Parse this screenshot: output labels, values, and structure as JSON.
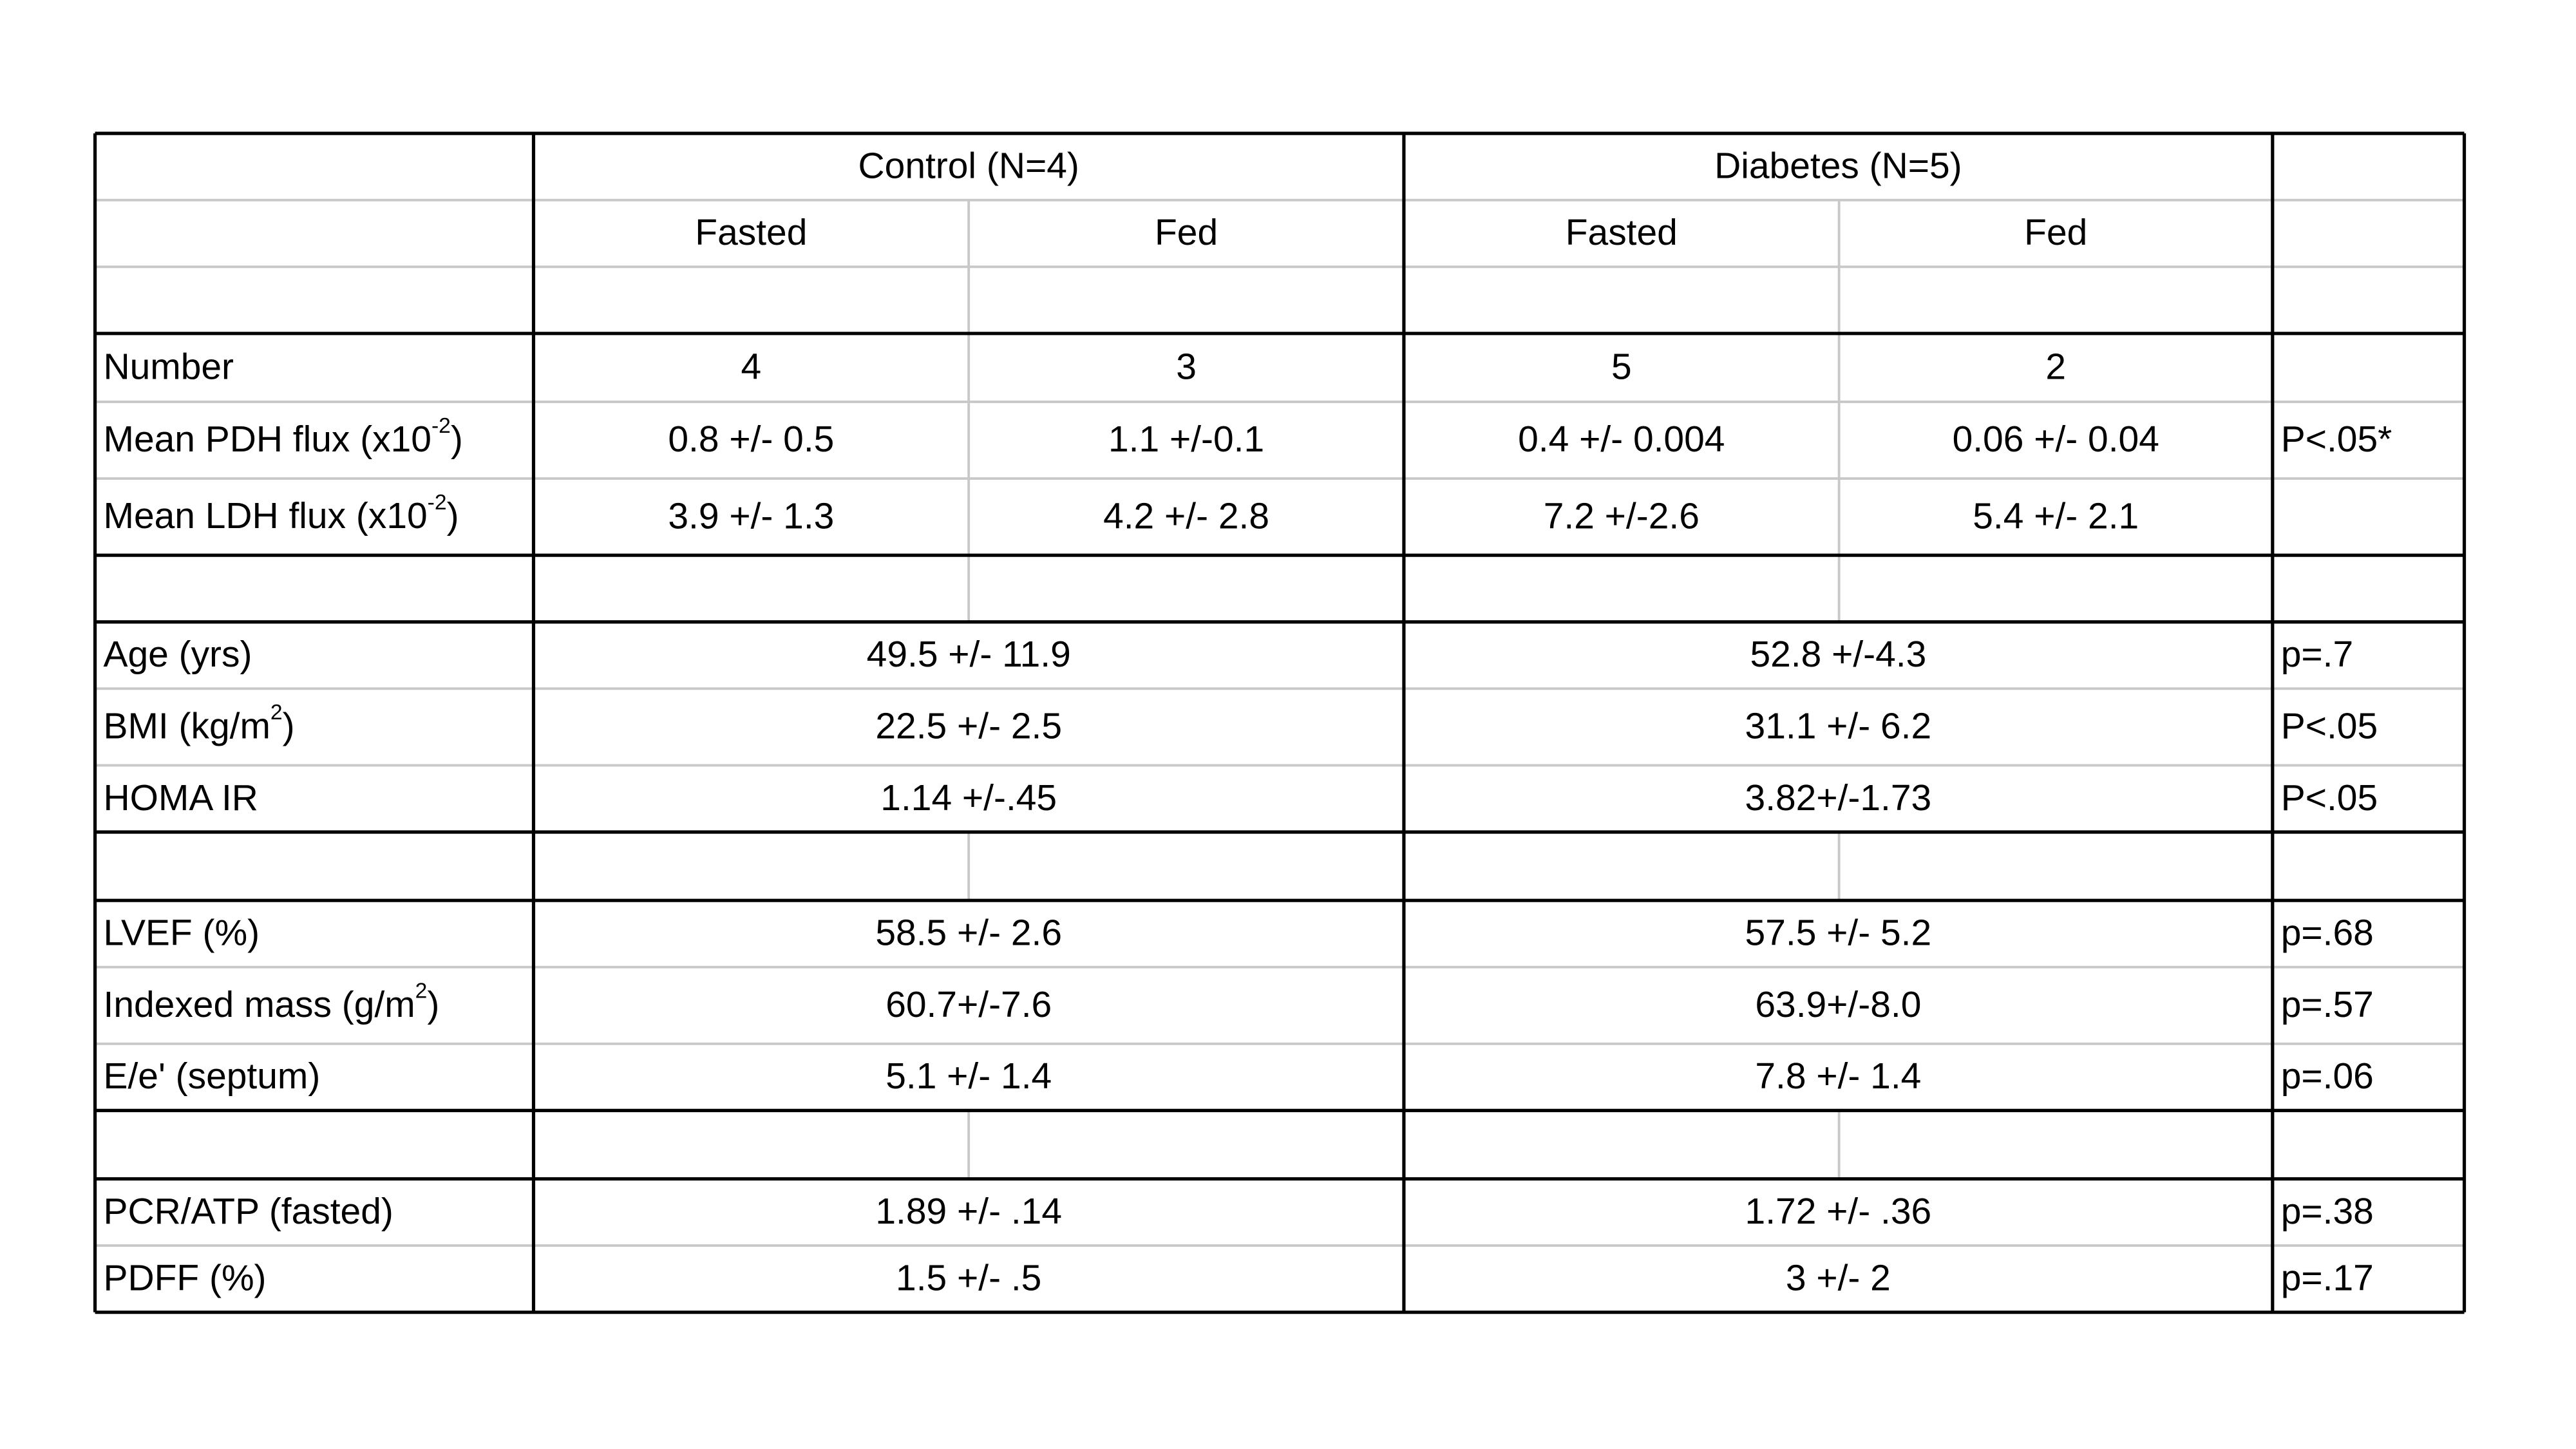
{
  "table": {
    "group_headers": [
      "Control (N=4)",
      "Diabetes (N=5)"
    ],
    "sub_headers": [
      "Fasted",
      "Fed",
      "Fasted",
      "Fed"
    ],
    "sections": [
      {
        "rows": [
          {
            "label": "Number",
            "cells": [
              "4",
              "3",
              "5",
              "2"
            ]
          },
          {
            "label": {
              "text": "Mean PDH flux (x10",
              "sup": "-2",
              "tail": ")"
            },
            "cells": [
              "0.8 +/- 0.5",
              "1.1 +/-0.1",
              "0.4 +/- 0.004",
              "0.06 +/- 0.04"
            ],
            "p": "P<.05*"
          },
          {
            "label": {
              "text": "Mean LDH flux (x10",
              "sup": "-2",
              "tail": ")"
            },
            "cells": [
              "3.9 +/- 1.3",
              "4.2 +/- 2.8",
              "7.2 +/-2.6",
              "5.4 +/- 2.1"
            ]
          }
        ]
      },
      {
        "rows": [
          {
            "label": "Age (yrs)",
            "control": "49.5 +/- 11.9",
            "diabetes": "52.8 +/-4.3",
            "p": "p=.7"
          },
          {
            "label": {
              "text": "BMI (kg/m",
              "sup": "2",
              "tail": ")"
            },
            "control": "22.5 +/- 2.5",
            "diabetes": "31.1 +/- 6.2",
            "p": "P<.05"
          },
          {
            "label": "HOMA IR",
            "control": "1.14 +/-.45",
            "diabetes": "3.82+/-1.73",
            "p": "P<.05"
          }
        ]
      },
      {
        "rows": [
          {
            "label": "LVEF (%)",
            "control": "58.5 +/- 2.6",
            "diabetes": "57.5 +/- 5.2",
            "p": "p=.68"
          },
          {
            "label": {
              "text": "Indexed mass (g/m",
              "sup": "2",
              "tail": ")"
            },
            "control": "60.7+/-7.6",
            "diabetes": "63.9+/-8.0",
            "p": "p=.57"
          },
          {
            "label": "E/e' (septum)",
            "control": "5.1 +/- 1.4",
            "diabetes": "7.8 +/- 1.4",
            "p": "p=.06"
          }
        ]
      },
      {
        "rows": [
          {
            "label": "PCR/ATP (fasted)",
            "control": "1.89 +/- .14",
            "diabetes": "1.72 +/- .36",
            "p": "p=.38"
          },
          {
            "label": "PDFF (%)",
            "control": "1.5 +/- .5",
            "diabetes": "3 +/- 2",
            "p": "p=.17"
          }
        ]
      }
    ]
  }
}
